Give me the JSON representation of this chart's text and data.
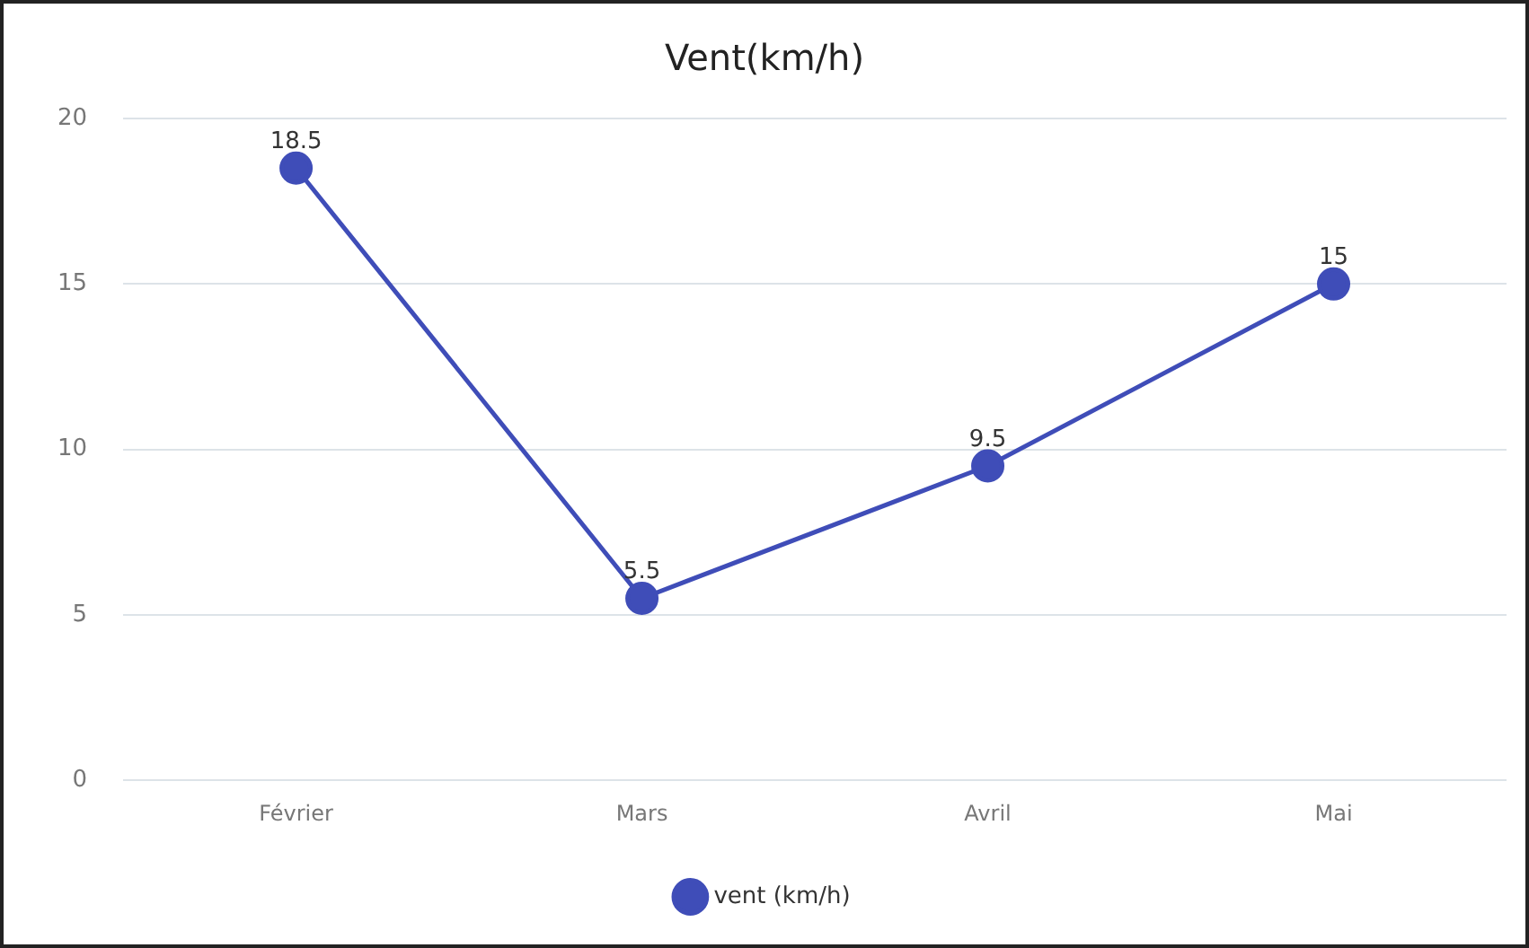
{
  "chart_data": {
    "type": "line",
    "title": "Vent(km/h)",
    "categories": [
      "Février",
      "Mars",
      "Avril",
      "Mai"
    ],
    "series": [
      {
        "name": "vent (km/h)",
        "color": "#3f4db8",
        "values": [
          18.5,
          5.5,
          9.5,
          15
        ]
      }
    ],
    "ylim": [
      0,
      20
    ],
    "yticks": [
      0,
      5,
      10,
      15,
      20
    ],
    "grid": "y",
    "legend": "bottom",
    "marker": "circle",
    "line_style": "solid",
    "data_labels": true
  }
}
